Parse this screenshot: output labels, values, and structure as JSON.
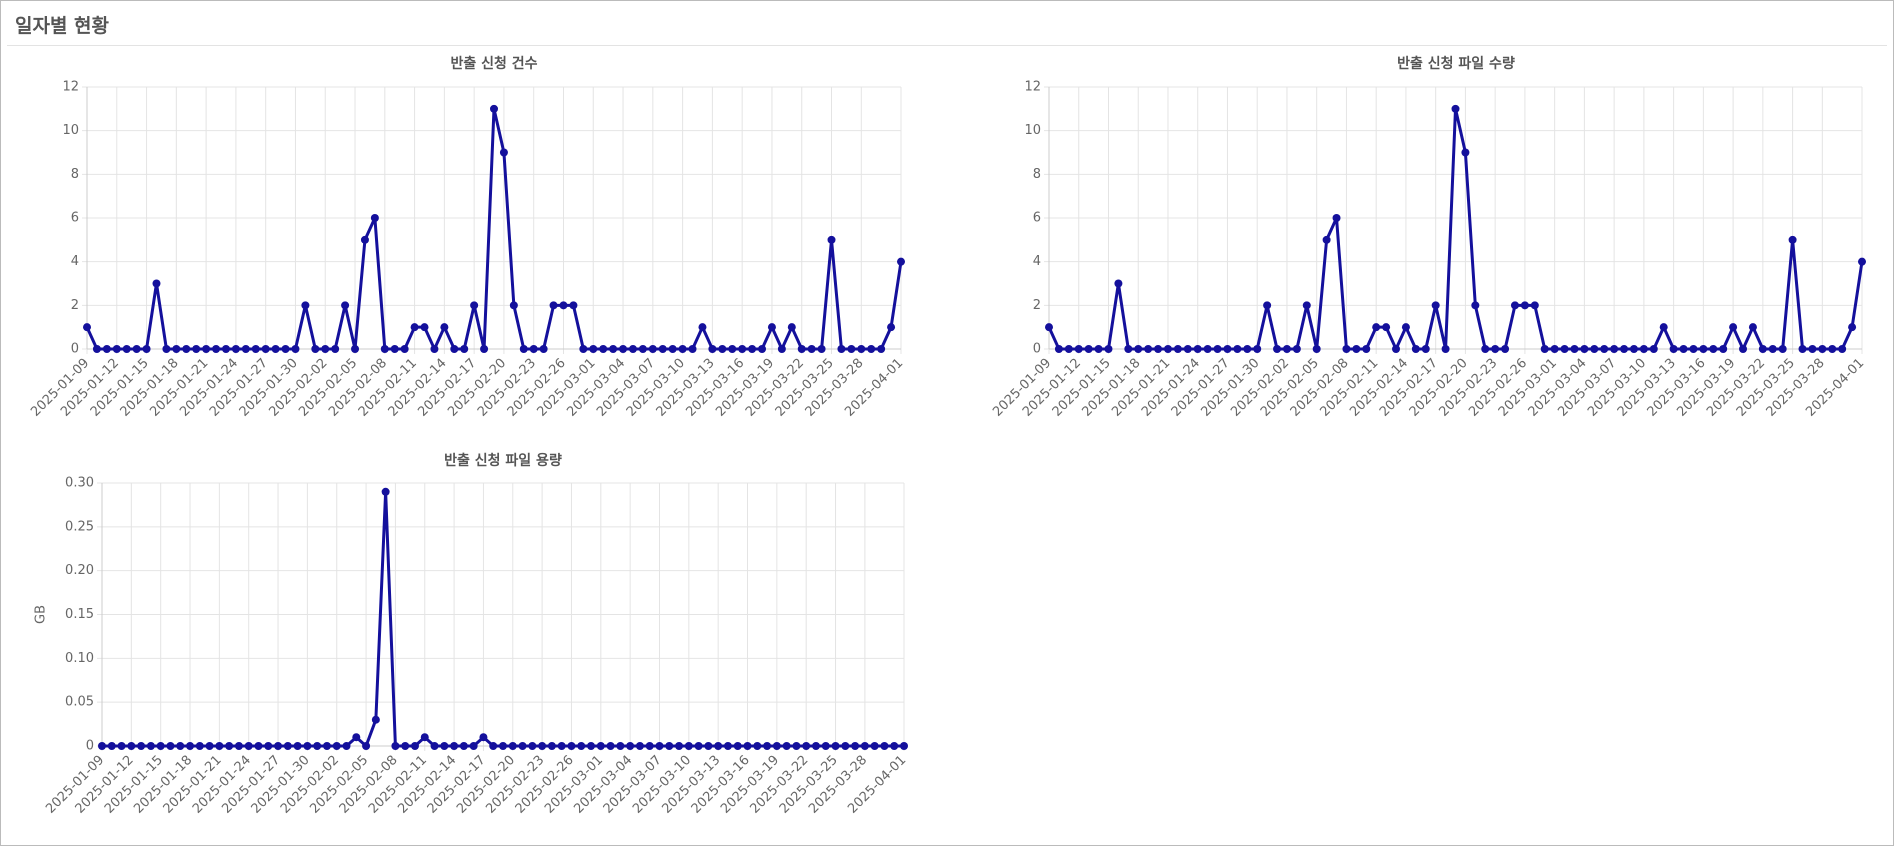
{
  "header": {
    "title": "일자별 현황"
  },
  "chart_data": [
    {
      "type": "line",
      "title": "반출 신청 건수",
      "categories": [
        "2025-01-09",
        null,
        null,
        "2025-01-12",
        null,
        null,
        "2025-01-15",
        null,
        null,
        "2025-01-18",
        null,
        null,
        "2025-01-21",
        null,
        null,
        "2025-01-24",
        null,
        null,
        "2025-01-27",
        null,
        null,
        "2025-01-30",
        null,
        null,
        "2025-02-02",
        null,
        null,
        "2025-02-05",
        null,
        null,
        "2025-02-08",
        null,
        null,
        "2025-02-11",
        null,
        null,
        "2025-02-14",
        null,
        null,
        "2025-02-17",
        null,
        null,
        "2025-02-20",
        null,
        null,
        "2025-02-23",
        null,
        null,
        "2025-02-26",
        null,
        null,
        "2025-03-01",
        null,
        null,
        "2025-03-04",
        null,
        null,
        "2025-03-07",
        null,
        null,
        "2025-03-10",
        null,
        null,
        "2025-03-13",
        null,
        null,
        "2025-03-16",
        null,
        null,
        "2025-03-19",
        null,
        null,
        "2025-03-22",
        null,
        null,
        "2025-03-25",
        null,
        null,
        "2025-03-28",
        null,
        null,
        null,
        "2025-04-01"
      ],
      "series": [
        {
          "color": "#14109c",
          "values": [
            1,
            0,
            0,
            0,
            0,
            0,
            0,
            3,
            0,
            0,
            0,
            0,
            0,
            0,
            0,
            0,
            0,
            0,
            0,
            0,
            0,
            0,
            2,
            0,
            0,
            0,
            2,
            0,
            5,
            6,
            0,
            0,
            0,
            1,
            1,
            0,
            1,
            0,
            0,
            2,
            0,
            11,
            9,
            2,
            0,
            0,
            0,
            2,
            2,
            2,
            0,
            0,
            0,
            0,
            0,
            0,
            0,
            0,
            0,
            0,
            0,
            0,
            1,
            0,
            0,
            0,
            0,
            0,
            0,
            1,
            0,
            1,
            0,
            0,
            0,
            5,
            0,
            0,
            0,
            0,
            0,
            1,
            4
          ]
        }
      ],
      "ylim": [
        0,
        12
      ],
      "yticks": [
        0,
        2,
        4,
        6,
        8,
        10,
        12
      ],
      "grid": true
    },
    {
      "type": "line",
      "title": "반출 신청 파일 수량",
      "categories": [
        "2025-01-09",
        null,
        null,
        "2025-01-12",
        null,
        null,
        "2025-01-15",
        null,
        null,
        "2025-01-18",
        null,
        null,
        "2025-01-21",
        null,
        null,
        "2025-01-24",
        null,
        null,
        "2025-01-27",
        null,
        null,
        "2025-01-30",
        null,
        null,
        "2025-02-02",
        null,
        null,
        "2025-02-05",
        null,
        null,
        "2025-02-08",
        null,
        null,
        "2025-02-11",
        null,
        null,
        "2025-02-14",
        null,
        null,
        "2025-02-17",
        null,
        null,
        "2025-02-20",
        null,
        null,
        "2025-02-23",
        null,
        null,
        "2025-02-26",
        null,
        null,
        "2025-03-01",
        null,
        null,
        "2025-03-04",
        null,
        null,
        "2025-03-07",
        null,
        null,
        "2025-03-10",
        null,
        null,
        "2025-03-13",
        null,
        null,
        "2025-03-16",
        null,
        null,
        "2025-03-19",
        null,
        null,
        "2025-03-22",
        null,
        null,
        "2025-03-25",
        null,
        null,
        "2025-03-28",
        null,
        null,
        null,
        "2025-04-01"
      ],
      "series": [
        {
          "color": "#14109c",
          "values": [
            1,
            0,
            0,
            0,
            0,
            0,
            0,
            3,
            0,
            0,
            0,
            0,
            0,
            0,
            0,
            0,
            0,
            0,
            0,
            0,
            0,
            0,
            2,
            0,
            0,
            0,
            2,
            0,
            5,
            6,
            0,
            0,
            0,
            1,
            1,
            0,
            1,
            0,
            0,
            2,
            0,
            11,
            9,
            2,
            0,
            0,
            0,
            2,
            2,
            2,
            0,
            0,
            0,
            0,
            0,
            0,
            0,
            0,
            0,
            0,
            0,
            0,
            1,
            0,
            0,
            0,
            0,
            0,
            0,
            1,
            0,
            1,
            0,
            0,
            0,
            5,
            0,
            0,
            0,
            0,
            0,
            1,
            4
          ]
        }
      ],
      "ylim": [
        0,
        12
      ],
      "yticks": [
        0,
        2,
        4,
        6,
        8,
        10,
        12
      ],
      "grid": true
    },
    {
      "type": "line",
      "title": "반출 신청 파일 용량",
      "y_label": "GB",
      "categories": [
        "2025-01-09",
        null,
        null,
        "2025-01-12",
        null,
        null,
        "2025-01-15",
        null,
        null,
        "2025-01-18",
        null,
        null,
        "2025-01-21",
        null,
        null,
        "2025-01-24",
        null,
        null,
        "2025-01-27",
        null,
        null,
        "2025-01-30",
        null,
        null,
        "2025-02-02",
        null,
        null,
        "2025-02-05",
        null,
        null,
        "2025-02-08",
        null,
        null,
        "2025-02-11",
        null,
        null,
        "2025-02-14",
        null,
        null,
        "2025-02-17",
        null,
        null,
        "2025-02-20",
        null,
        null,
        "2025-02-23",
        null,
        null,
        "2025-02-26",
        null,
        null,
        "2025-03-01",
        null,
        null,
        "2025-03-04",
        null,
        null,
        "2025-03-07",
        null,
        null,
        "2025-03-10",
        null,
        null,
        "2025-03-13",
        null,
        null,
        "2025-03-16",
        null,
        null,
        "2025-03-19",
        null,
        null,
        "2025-03-22",
        null,
        null,
        "2025-03-25",
        null,
        null,
        "2025-03-28",
        null,
        null,
        null,
        "2025-04-01"
      ],
      "series": [
        {
          "color": "#14109c",
          "values": [
            0,
            0,
            0,
            0,
            0,
            0,
            0,
            0,
            0,
            0,
            0,
            0,
            0,
            0,
            0,
            0,
            0,
            0,
            0,
            0,
            0,
            0,
            0,
            0,
            0,
            0,
            0.01,
            0,
            0.03,
            0.29,
            0,
            0,
            0,
            0.01,
            0,
            0,
            0,
            0,
            0,
            0.01,
            0,
            0,
            0,
            0,
            0,
            0,
            0,
            0,
            0,
            0,
            0,
            0,
            0,
            0,
            0,
            0,
            0,
            0,
            0,
            0,
            0,
            0,
            0,
            0,
            0,
            0,
            0,
            0,
            0,
            0,
            0,
            0,
            0,
            0,
            0,
            0,
            0,
            0,
            0,
            0,
            0,
            0,
            0
          ]
        }
      ],
      "ylim": [
        0,
        0.3
      ],
      "yticks": [
        0,
        0.05,
        {
          "value": 0.1,
          "label": "0.10"
        },
        0.15,
        {
          "value": 0.2,
          "label": "0.20"
        },
        0.25,
        {
          "value": 0.3,
          "label": "0.30"
        }
      ],
      "grid": true
    }
  ]
}
